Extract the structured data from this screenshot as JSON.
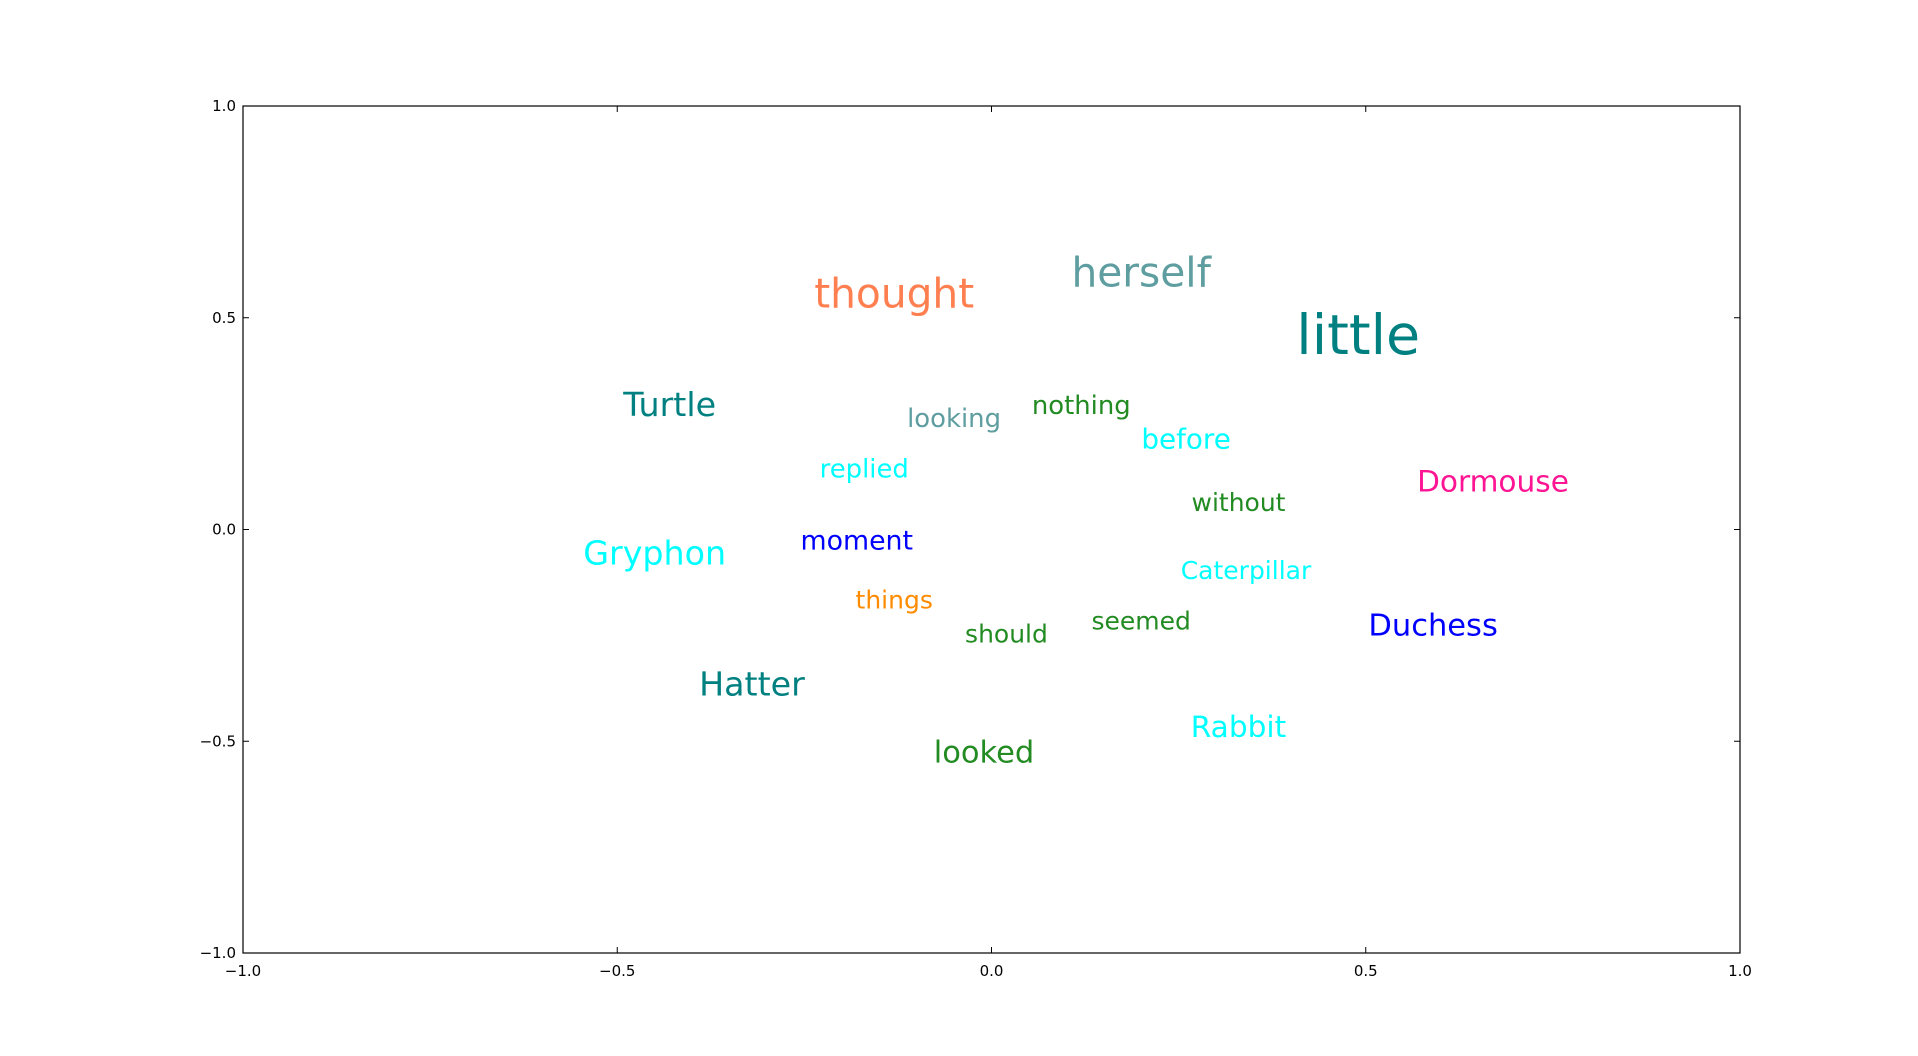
{
  "chart_data": {
    "type": "scatter",
    "title": "",
    "xlabel": "",
    "ylabel": "",
    "xlim": [
      -1.0,
      1.0
    ],
    "ylim": [
      -1.0,
      1.0
    ],
    "grid": false,
    "legend": "none",
    "x_ticks": [
      {
        "value": -1.0,
        "label": "−1.0"
      },
      {
        "value": -0.5,
        "label": "−0.5"
      },
      {
        "value": 0.0,
        "label": "0.0"
      },
      {
        "value": 0.5,
        "label": "0.5"
      },
      {
        "value": 1.0,
        "label": "1.0"
      }
    ],
    "y_ticks": [
      {
        "value": -1.0,
        "label": "−1.0"
      },
      {
        "value": -0.5,
        "label": "−0.5"
      },
      {
        "value": 0.0,
        "label": "0.0"
      },
      {
        "value": 0.5,
        "label": "0.5"
      },
      {
        "value": 1.0,
        "label": "1.0"
      }
    ],
    "points": [
      {
        "word": "little",
        "x": 0.49,
        "y": 0.45,
        "weight": 3.0,
        "color": "#008080"
      },
      {
        "word": "herself",
        "x": 0.2,
        "y": 0.6,
        "weight": 2.2,
        "color": "#5f9ea0"
      },
      {
        "word": "thought",
        "x": -0.13,
        "y": 0.55,
        "weight": 2.2,
        "color": "#ff7f50"
      },
      {
        "word": "Turtle",
        "x": -0.43,
        "y": 0.29,
        "weight": 1.8,
        "color": "#008080"
      },
      {
        "word": "looking",
        "x": -0.05,
        "y": 0.26,
        "weight": 1.4,
        "color": "#5f9ea0"
      },
      {
        "word": "nothing",
        "x": 0.12,
        "y": 0.29,
        "weight": 1.4,
        "color": "#228b22"
      },
      {
        "word": "before",
        "x": 0.26,
        "y": 0.21,
        "weight": 1.5,
        "color": "#00ffff"
      },
      {
        "word": "replied",
        "x": -0.17,
        "y": 0.14,
        "weight": 1.4,
        "color": "#00ffff"
      },
      {
        "word": "Dormouse",
        "x": 0.67,
        "y": 0.11,
        "weight": 1.6,
        "color": "#ff1493"
      },
      {
        "word": "without",
        "x": 0.33,
        "y": 0.06,
        "weight": 1.35,
        "color": "#228b22"
      },
      {
        "word": "moment",
        "x": -0.18,
        "y": -0.03,
        "weight": 1.45,
        "color": "#0000ff"
      },
      {
        "word": "Gryphon",
        "x": -0.45,
        "y": -0.06,
        "weight": 1.8,
        "color": "#00ffff"
      },
      {
        "word": "Caterpillar",
        "x": 0.34,
        "y": -0.1,
        "weight": 1.35,
        "color": "#00ffff"
      },
      {
        "word": "things",
        "x": -0.13,
        "y": -0.17,
        "weight": 1.35,
        "color": "#ff8c00"
      },
      {
        "word": "should",
        "x": 0.02,
        "y": -0.25,
        "weight": 1.35,
        "color": "#228b22"
      },
      {
        "word": "seemed",
        "x": 0.2,
        "y": -0.22,
        "weight": 1.35,
        "color": "#228b22"
      },
      {
        "word": "Duchess",
        "x": 0.59,
        "y": -0.23,
        "weight": 1.65,
        "color": "#0000ff"
      },
      {
        "word": "Hatter",
        "x": -0.32,
        "y": -0.37,
        "weight": 1.8,
        "color": "#008080"
      },
      {
        "word": "Rabbit",
        "x": 0.33,
        "y": -0.47,
        "weight": 1.6,
        "color": "#00ffff"
      },
      {
        "word": "looked",
        "x": -0.01,
        "y": -0.53,
        "weight": 1.65,
        "color": "#228b22"
      }
    ]
  }
}
